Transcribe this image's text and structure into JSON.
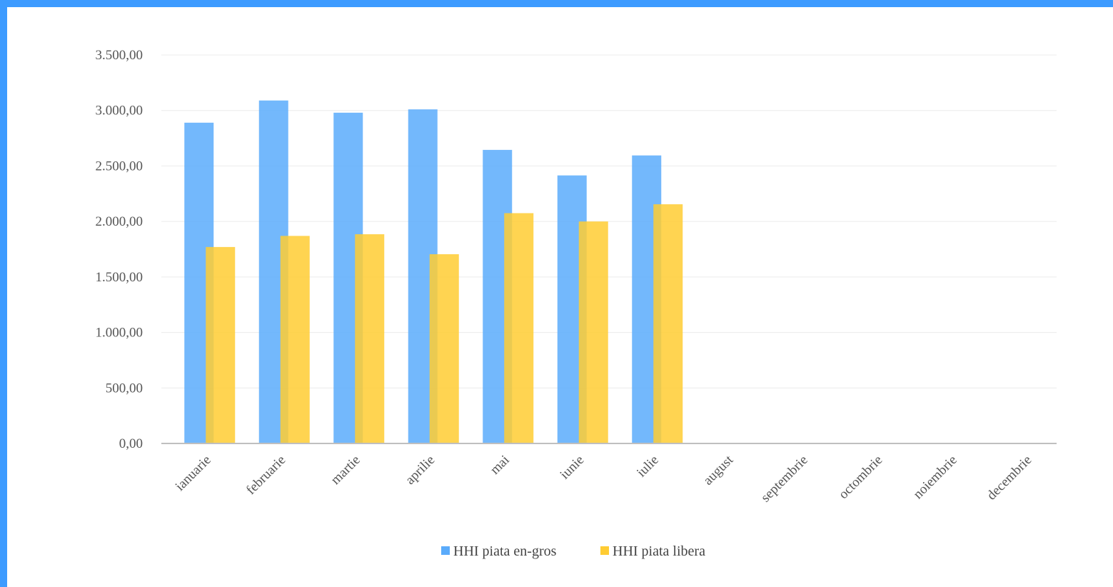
{
  "chart_data": {
    "type": "bar",
    "title": "",
    "xlabel": "",
    "ylabel": "",
    "ylim": [
      0,
      3500
    ],
    "yticks": [
      0,
      500,
      1000,
      1500,
      2000,
      2500,
      3000,
      3500
    ],
    "ytick_labels": [
      "0,00",
      "500,00",
      "1.000,00",
      "1.500,00",
      "2.000,00",
      "2.500,00",
      "3.000,00",
      "3.500,00"
    ],
    "categories": [
      "ianuarie",
      "februarie",
      "martie",
      "aprilie",
      "mai",
      "iunie",
      "iulie",
      "august",
      "septembrie",
      "octombrie",
      "noiembrie",
      "decembrie"
    ],
    "series": [
      {
        "name": "HHI piata en-gros",
        "color": "#5aabfb",
        "values": [
          2890,
          3090,
          2980,
          3010,
          2645,
          2415,
          2595,
          null,
          null,
          null,
          null,
          null
        ]
      },
      {
        "name": "HHI piata libera",
        "color": "#ffcc33",
        "values": [
          1770,
          1870,
          1885,
          1705,
          2075,
          2000,
          2155,
          null,
          null,
          null,
          null,
          null
        ]
      }
    ],
    "grid": true,
    "legend_position": "bottom"
  }
}
